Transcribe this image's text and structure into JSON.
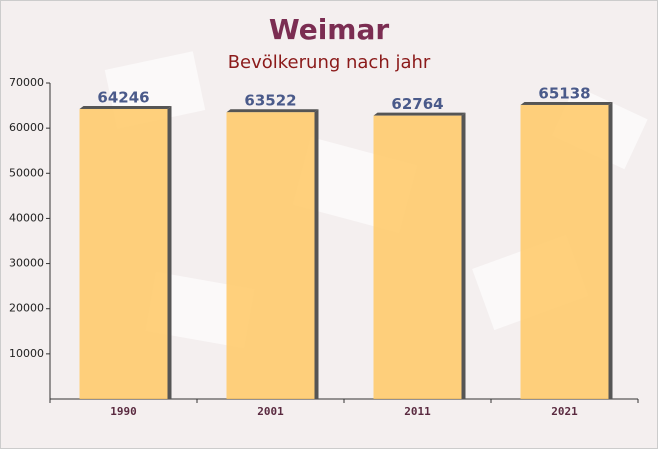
{
  "chart_data": {
    "type": "bar",
    "title": "Weimar",
    "subtitle": "Bevölkerung nach jahr",
    "categories": [
      "1990",
      "2001",
      "2011",
      "2021"
    ],
    "values": [
      64246,
      63522,
      62764,
      65138
    ],
    "color": "#ffc966",
    "ylim": [
      0,
      70000
    ],
    "yticks": [
      10000,
      20000,
      30000,
      40000,
      50000,
      60000,
      70000
    ]
  }
}
